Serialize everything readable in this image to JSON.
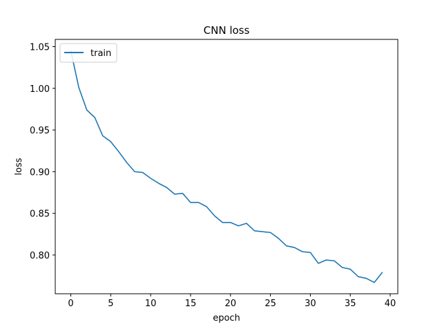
{
  "chart_data": {
    "type": "line",
    "title": "CNN loss",
    "xlabel": "epoch",
    "ylabel": "loss",
    "xlim": [
      -1.95,
      40.95
    ],
    "ylim": [
      0.7535,
      1.0587
    ],
    "xticks": [
      0,
      5,
      10,
      15,
      20,
      25,
      30,
      35,
      40
    ],
    "yticks": [
      0.8,
      0.85,
      0.9,
      0.95,
      1.0,
      1.05
    ],
    "ytick_labels": [
      "0.80",
      "0.85",
      "0.90",
      "0.95",
      "1.00",
      "1.05"
    ],
    "grid": false,
    "legend_position": "upper left",
    "colors": {
      "train": "#1f77b4"
    },
    "series": [
      {
        "name": "train",
        "x": [
          0,
          1,
          2,
          3,
          4,
          5,
          6,
          7,
          8,
          9,
          10,
          11,
          12,
          13,
          14,
          15,
          16,
          17,
          18,
          19,
          20,
          21,
          22,
          23,
          24,
          25,
          26,
          27,
          28,
          29,
          30,
          31,
          32,
          33,
          34,
          35,
          36,
          37,
          38,
          39
        ],
        "values": [
          1.045,
          1.001,
          0.974,
          0.965,
          0.943,
          0.936,
          0.924,
          0.911,
          0.9,
          0.899,
          0.892,
          0.886,
          0.881,
          0.873,
          0.874,
          0.863,
          0.863,
          0.858,
          0.847,
          0.839,
          0.839,
          0.835,
          0.838,
          0.829,
          0.828,
          0.827,
          0.82,
          0.811,
          0.809,
          0.804,
          0.803,
          0.79,
          0.794,
          0.793,
          0.785,
          0.783,
          0.774,
          0.772,
          0.767,
          0.779
        ]
      }
    ]
  }
}
